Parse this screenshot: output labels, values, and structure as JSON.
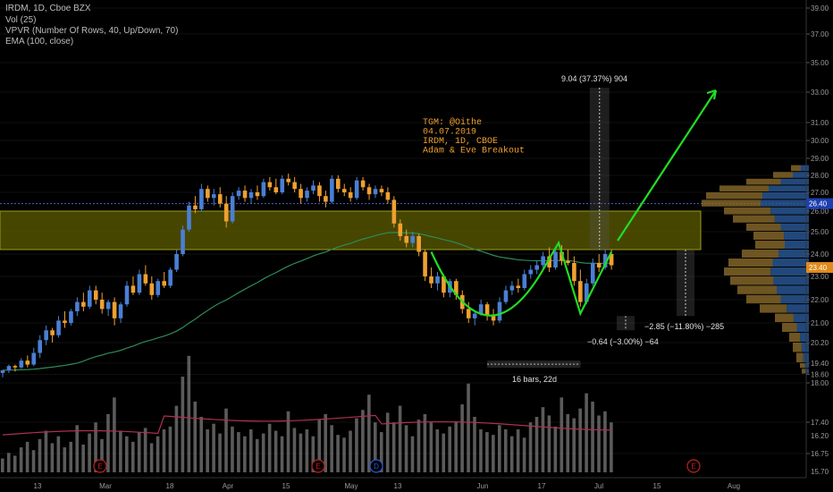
{
  "legend": {
    "title": "IRDM, 1D, Cboe BZX",
    "vol": "Vol (25)",
    "vpvr": "VPVR (Number Of Rows, 40, Up/Down, 70)",
    "ema": "EMA (100, close)"
  },
  "colors": {
    "up": "#4a7fd4",
    "down": "#f0a030",
    "ema": "#2e8b57",
    "vol_ma": "#b03050",
    "zone": "#6b6b00",
    "arrow": "#22dd22",
    "annotation": "#f0a030"
  },
  "annotations": {
    "note_lines": [
      "TGM: @Oithe",
      "04.07.2019",
      "IRDM, 1D, CBOE",
      "Adam & Eve Breakout"
    ],
    "measure_up": "9.04 (37.37%) 904",
    "measure_down_big": "−2.85 (−11.80%) −285",
    "measure_down_small": "−0.64 (−3.00%) −64",
    "bars_range": "16 bars, 22d"
  },
  "chart_data": {
    "type": "candlestick",
    "symbol": "IRDM",
    "interval": "1D",
    "exchange": "Cboe BZX",
    "y_axis_ticks": [
      16.75,
      17.4,
      18.0,
      18.6,
      19.4,
      20.2,
      21.0,
      22.0,
      23.0,
      24.0,
      25.0,
      26.0,
      27.0,
      28.0,
      29.0,
      30.0,
      31.0,
      33.0,
      35.0,
      37.0,
      39.0
    ],
    "y_axis_extra_ticks": [
      15.7,
      16.2
    ],
    "x_axis_ticks": [
      "13",
      "Mar",
      "18",
      "Apr",
      "15",
      "May",
      "13",
      "Jun",
      "17",
      "Jul",
      "15",
      "Aug"
    ],
    "last_price": "23.40",
    "marked_price": "26.40",
    "resistance_zone": [
      24.2,
      26.0
    ],
    "event_markers": [
      "E",
      "E",
      "D",
      "E"
    ],
    "candles": [
      [
        18.7,
        18.9,
        18.4,
        18.9
      ],
      [
        18.9,
        19.3,
        18.7,
        19.2
      ],
      [
        19.2,
        19.3,
        18.8,
        19.1
      ],
      [
        19.1,
        19.6,
        19.0,
        19.5
      ],
      [
        19.5,
        19.7,
        19.1,
        19.3
      ],
      [
        19.3,
        20.0,
        19.2,
        19.8
      ],
      [
        19.8,
        20.5,
        19.6,
        20.3
      ],
      [
        20.3,
        20.9,
        20.1,
        20.7
      ],
      [
        20.7,
        20.8,
        20.2,
        20.5
      ],
      [
        20.5,
        21.3,
        20.4,
        21.1
      ],
      [
        21.1,
        21.5,
        20.8,
        21.0
      ],
      [
        21.0,
        21.6,
        20.9,
        21.5
      ],
      [
        21.5,
        22.1,
        21.3,
        21.9
      ],
      [
        21.9,
        22.3,
        21.5,
        21.7
      ],
      [
        21.7,
        22.6,
        21.6,
        22.4
      ],
      [
        22.4,
        22.6,
        21.8,
        22.0
      ],
      [
        22.0,
        22.3,
        21.4,
        21.6
      ],
      [
        21.6,
        22.0,
        21.3,
        21.9
      ],
      [
        21.9,
        22.1,
        20.9,
        21.2
      ],
      [
        21.2,
        21.9,
        21.0,
        21.8
      ],
      [
        21.8,
        22.8,
        21.7,
        22.6
      ],
      [
        22.6,
        23.0,
        22.2,
        22.3
      ],
      [
        22.3,
        23.3,
        22.2,
        23.1
      ],
      [
        23.1,
        23.5,
        22.6,
        22.7
      ],
      [
        22.7,
        23.0,
        22.0,
        22.2
      ],
      [
        22.2,
        22.9,
        22.1,
        22.8
      ],
      [
        22.8,
        23.2,
        22.5,
        22.6
      ],
      [
        22.6,
        23.4,
        22.5,
        23.3
      ],
      [
        23.3,
        24.2,
        23.2,
        24.0
      ],
      [
        24.0,
        25.3,
        23.9,
        25.1
      ],
      [
        25.1,
        26.5,
        25.0,
        26.3
      ],
      [
        26.3,
        26.8,
        25.9,
        26.1
      ],
      [
        26.1,
        27.5,
        26.0,
        27.2
      ],
      [
        27.2,
        27.4,
        26.5,
        26.7
      ],
      [
        26.7,
        27.2,
        26.3,
        26.9
      ],
      [
        26.9,
        27.3,
        26.2,
        26.4
      ],
      [
        26.4,
        26.8,
        25.2,
        25.5
      ],
      [
        25.5,
        27.0,
        25.4,
        26.8
      ],
      [
        26.8,
        27.3,
        26.6,
        27.1
      ],
      [
        27.1,
        27.4,
        26.5,
        26.7
      ],
      [
        26.7,
        27.2,
        26.4,
        27.0
      ],
      [
        27.0,
        27.4,
        26.6,
        26.8
      ],
      [
        26.8,
        27.8,
        26.7,
        27.6
      ],
      [
        27.6,
        27.9,
        27.1,
        27.3
      ],
      [
        27.3,
        27.8,
        26.9,
        27.0
      ],
      [
        27.0,
        28.0,
        26.9,
        27.8
      ],
      [
        27.8,
        28.1,
        27.4,
        27.6
      ],
      [
        27.6,
        27.9,
        27.0,
        27.2
      ],
      [
        27.2,
        27.5,
        26.4,
        26.7
      ],
      [
        26.7,
        27.3,
        26.5,
        27.1
      ],
      [
        27.1,
        27.7,
        26.9,
        27.4
      ],
      [
        27.4,
        27.6,
        26.5,
        26.8
      ],
      [
        26.8,
        27.1,
        26.2,
        26.5
      ],
      [
        26.5,
        28.0,
        26.4,
        27.8
      ],
      [
        27.8,
        28.0,
        27.0,
        27.2
      ],
      [
        27.2,
        27.5,
        26.8,
        27.0
      ],
      [
        27.0,
        27.3,
        26.5,
        26.7
      ],
      [
        26.7,
        27.9,
        26.6,
        27.7
      ],
      [
        27.7,
        27.9,
        27.1,
        27.3
      ],
      [
        27.3,
        27.5,
        26.6,
        26.9
      ],
      [
        26.9,
        27.4,
        26.7,
        27.2
      ],
      [
        27.2,
        27.4,
        26.8,
        27.0
      ],
      [
        27.0,
        27.3,
        26.4,
        26.6
      ],
      [
        26.6,
        26.8,
        25.2,
        25.4
      ],
      [
        25.4,
        25.6,
        24.6,
        24.8
      ],
      [
        24.8,
        25.1,
        24.3,
        24.5
      ],
      [
        24.5,
        25.0,
        24.3,
        24.8
      ],
      [
        24.8,
        24.9,
        23.9,
        24.1
      ],
      [
        24.1,
        24.2,
        22.8,
        23.0
      ],
      [
        23.0,
        23.4,
        22.5,
        22.7
      ],
      [
        22.7,
        23.2,
        22.4,
        23.0
      ],
      [
        23.0,
        23.1,
        22.1,
        22.3
      ],
      [
        22.3,
        22.9,
        22.1,
        22.8
      ],
      [
        22.8,
        22.9,
        22.0,
        22.2
      ],
      [
        22.2,
        22.4,
        21.4,
        21.6
      ],
      [
        21.6,
        21.9,
        21.0,
        21.2
      ],
      [
        21.2,
        21.5,
        20.9,
        21.4
      ],
      [
        21.4,
        22.0,
        21.3,
        21.8
      ],
      [
        21.8,
        21.9,
        21.1,
        21.3
      ],
      [
        21.3,
        21.6,
        20.9,
        21.1
      ],
      [
        21.1,
        22.1,
        21.0,
        21.9
      ],
      [
        21.9,
        22.6,
        21.8,
        22.4
      ],
      [
        22.4,
        22.8,
        22.2,
        22.6
      ],
      [
        22.6,
        22.9,
        22.3,
        22.5
      ],
      [
        22.5,
        23.3,
        22.4,
        23.1
      ],
      [
        23.1,
        23.5,
        22.9,
        23.3
      ],
      [
        23.3,
        23.7,
        23.1,
        23.5
      ],
      [
        23.5,
        24.1,
        23.3,
        23.9
      ],
      [
        23.9,
        24.3,
        23.2,
        23.4
      ],
      [
        23.4,
        24.3,
        23.3,
        24.1
      ],
      [
        24.1,
        24.4,
        23.5,
        23.7
      ],
      [
        23.7,
        24.2,
        23.5,
        23.6
      ],
      [
        23.6,
        23.9,
        22.6,
        22.8
      ],
      [
        22.8,
        23.3,
        21.7,
        21.9
      ],
      [
        21.9,
        22.9,
        21.8,
        22.7
      ],
      [
        22.7,
        23.8,
        22.6,
        23.6
      ],
      [
        23.6,
        24.0,
        23.2,
        23.4
      ],
      [
        23.4,
        24.2,
        23.3,
        24.0
      ],
      [
        24.0,
        24.2,
        23.3,
        23.5
      ]
    ],
    "volume_scale_note": "relative"
  }
}
